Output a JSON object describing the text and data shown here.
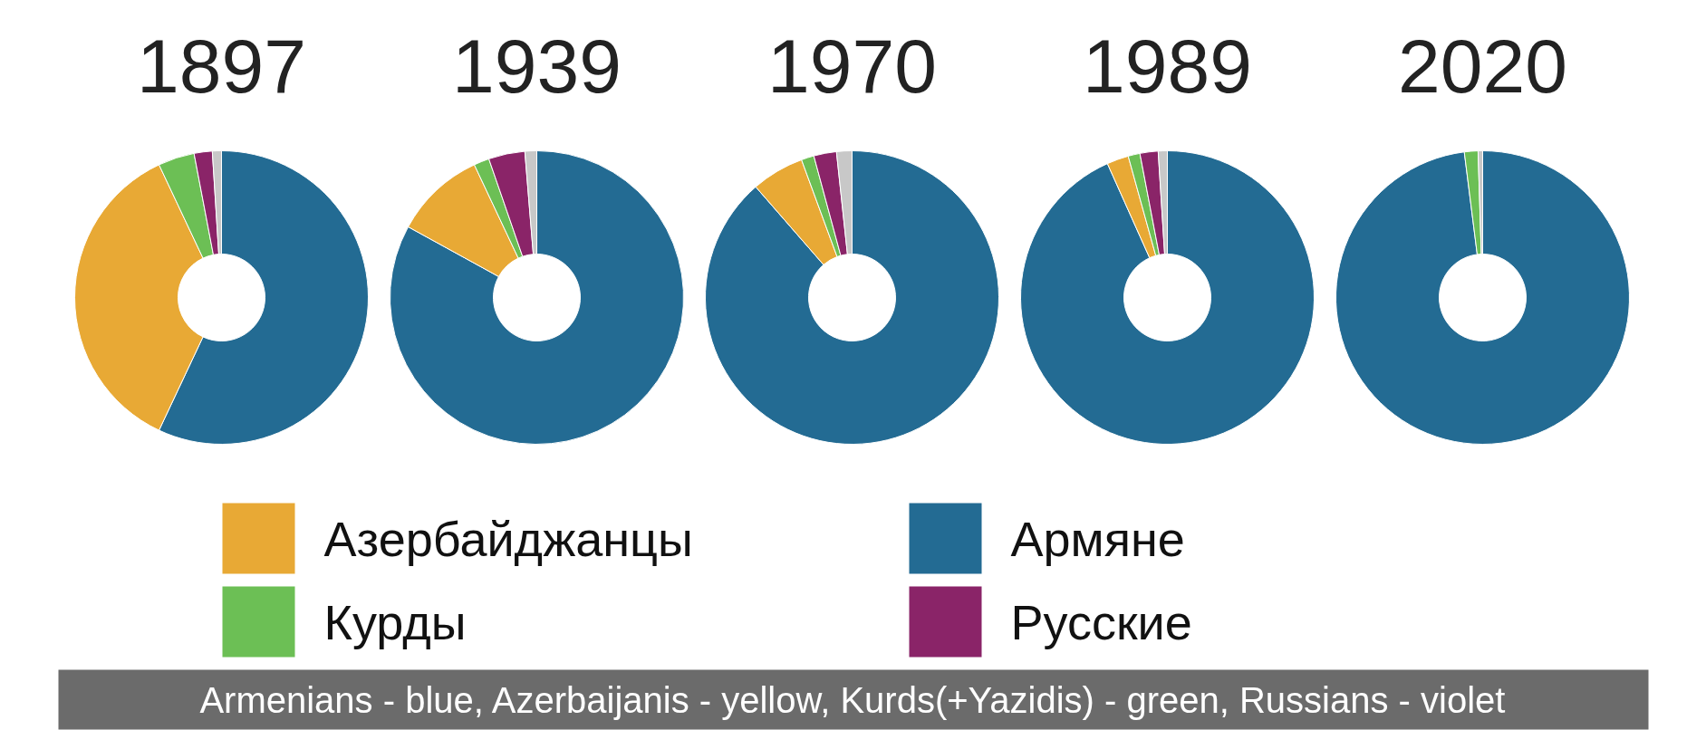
{
  "chart_data": [
    {
      "type": "donut",
      "title": "1897",
      "categories": [
        "Армяне",
        "Азербайджанцы",
        "Курды",
        "Русские",
        null
      ],
      "values": [
        57,
        36,
        4,
        2,
        1
      ],
      "colors": [
        "#236b93",
        "#e8a935",
        "#6cbf55",
        "#8a2468",
        "#c8c8c8"
      ],
      "legend": "bottom"
    },
    {
      "type": "donut",
      "title": "1939",
      "categories": [
        null,
        null,
        null,
        null,
        null
      ],
      "values": [
        83,
        10,
        1.7,
        4,
        1.3
      ],
      "colors": [
        "#236b93",
        "#e8a935",
        "#6cbf55",
        "#8a2468",
        "#c8c8c8"
      ]
    },
    {
      "type": "donut",
      "title": "1970",
      "categories": [
        null,
        null,
        null,
        null,
        null
      ],
      "values": [
        88.6,
        5.8,
        1.4,
        2.5,
        1.7
      ],
      "colors": [
        "#236b93",
        "#e8a935",
        "#6cbf55",
        "#8a2468",
        "#c8c8c8"
      ]
    },
    {
      "type": "donut",
      "title": "1989",
      "categories": [
        null,
        null,
        null,
        null,
        null
      ],
      "values": [
        93.3,
        2.4,
        1.3,
        2,
        1
      ],
      "colors": [
        "#236b93",
        "#e8a935",
        "#6cbf55",
        "#8a2468",
        "#c8c8c8"
      ]
    },
    {
      "type": "donut",
      "title": "2020",
      "categories": [
        null,
        null,
        null,
        null,
        null
      ],
      "values": [
        98,
        0,
        1.5,
        0,
        0.5
      ],
      "colors": [
        "#236b93",
        "#e8a935",
        "#6cbf55",
        "#8a2468",
        "#c8c8c8"
      ],
      "annotations": [
        "Armenians - blue, Azerbaijanis - yellow, Kurds(+Yazidis) - green, Russians - violet"
      ]
    }
  ]
}
